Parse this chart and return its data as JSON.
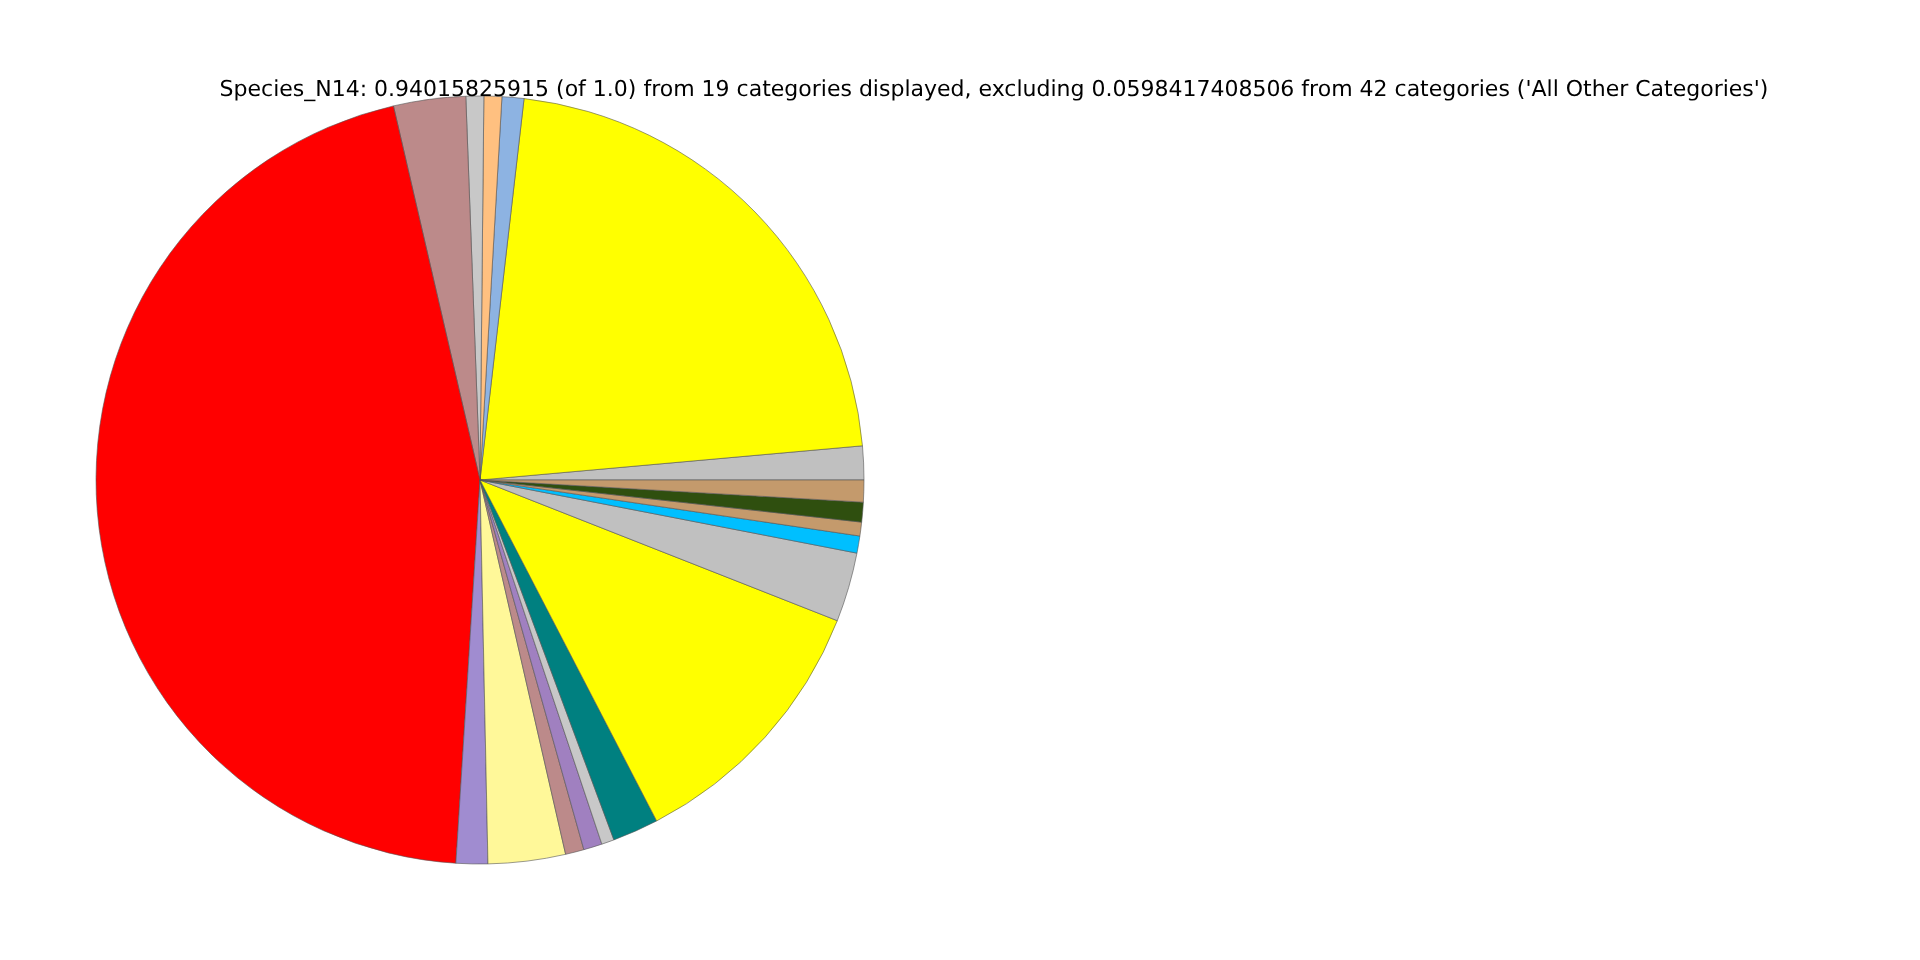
{
  "chart_data": {
    "type": "pie",
    "title": "Species_N14: 0.94015825915 (of 1.0) from 19 categories displayed, excluding 0.0598417408506 from 42 categories ('All Other Categories')",
    "categories": [
      null,
      null,
      null,
      null,
      null,
      null,
      null,
      null,
      null,
      null,
      null,
      null,
      null,
      null,
      null,
      null,
      null,
      null,
      null
    ],
    "values": [
      1.42,
      21.75,
      0.92,
      0.75,
      0.75,
      3.03,
      45.38,
      1.33,
      3.25,
      0.78,
      0.78,
      0.53,
      1.94,
      11.42,
      2.92,
      0.72,
      0.58,
      0.83,
      0.92
    ],
    "colors": [
      "#c0c0c0",
      "#ffff00",
      "#8db3e2",
      "#ffc080",
      "#c8c8c8",
      "#bc8a8a",
      "#ff0000",
      "#a08cd0",
      "#fff899",
      "#bc8a8a",
      "#a080c0",
      "#c8c8c8",
      "#008080",
      "#ffff00",
      "#c0c0c0",
      "#00bfff",
      "#c49a6c",
      "#2f4f0f",
      "#c49a6c"
    ]
  }
}
